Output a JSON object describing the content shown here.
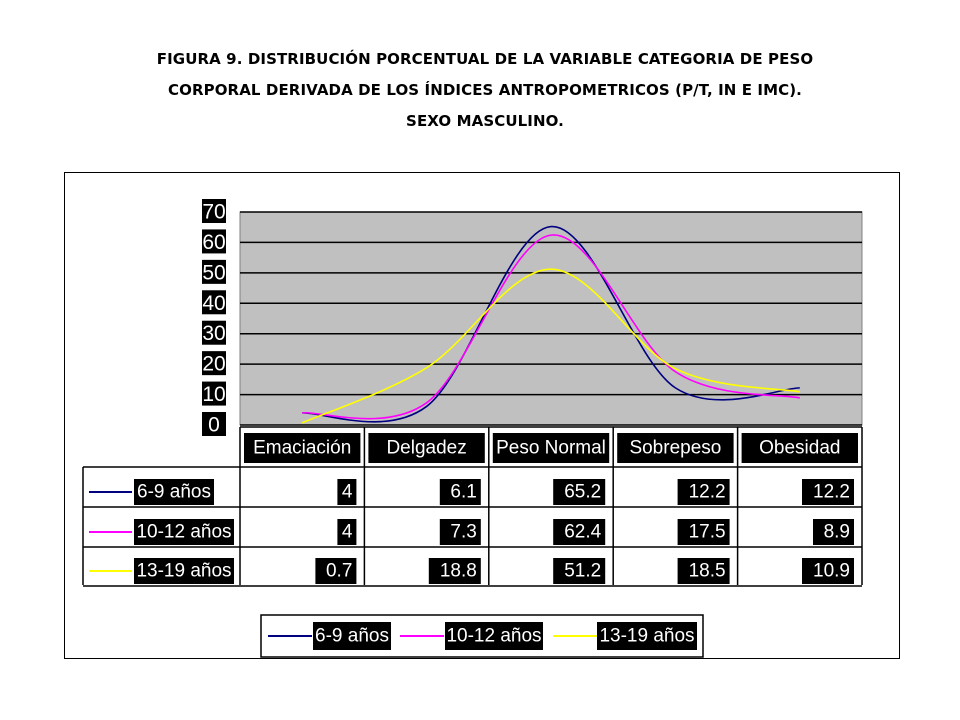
{
  "title": {
    "line1": "FIGURA 9. DISTRIBUCIÓN PORCENTUAL DE LA VARIABLE CATEGORIA DE PESO",
    "line2": "CORPORAL DERIVADA DE LOS ÍNDICES ANTROPOMETRICOS (P/T, IN E IMC).",
    "line3": "SEXO MASCULINO."
  },
  "chart_data": {
    "type": "line",
    "smooth": true,
    "categories": [
      "Emaciación",
      "Delgadez",
      "Peso Normal",
      "Sobrepeso",
      "Obesidad"
    ],
    "ylim": [
      0,
      70
    ],
    "yticks": [
      "0",
      "10",
      "20",
      "30",
      "40",
      "50",
      "60",
      "70"
    ],
    "grid": true,
    "plot_background": "#c0c0c0",
    "legend_position": "bottom",
    "data_table": true,
    "series": [
      {
        "name": "6-9 años",
        "color": "#000080",
        "values": [
          4,
          6.1,
          65.2,
          12.2,
          12.2
        ],
        "labels": [
          "4",
          "6.1",
          "65.2",
          "12.2",
          "12.2"
        ]
      },
      {
        "name": "10-12 años",
        "color": "#ff00ff",
        "values": [
          4,
          7.3,
          62.4,
          17.5,
          8.9
        ],
        "labels": [
          "4",
          "7.3",
          "62.4",
          "17.5",
          "8.9"
        ]
      },
      {
        "name": "13-19 años",
        "color": "#ffff00",
        "values": [
          0.7,
          18.8,
          51.2,
          18.5,
          10.9
        ],
        "labels": [
          "0.7",
          "18.8",
          "51.2",
          "18.5",
          "10.9"
        ]
      }
    ]
  }
}
